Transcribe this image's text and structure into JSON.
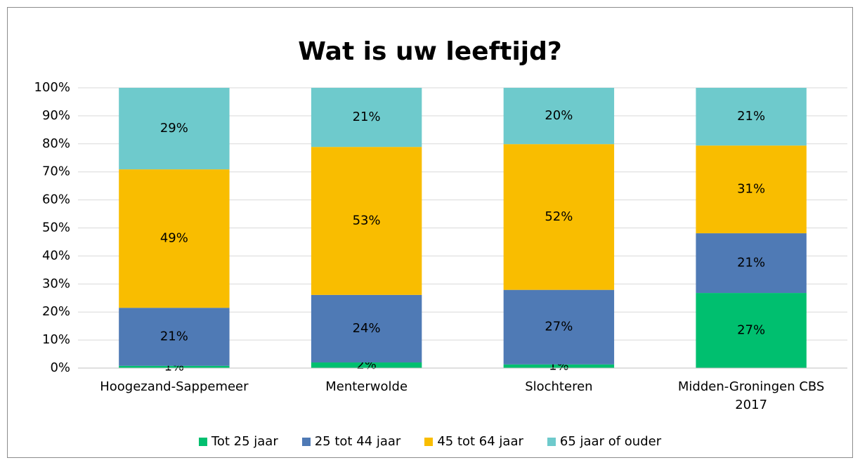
{
  "chart_data": {
    "type": "stacked_bar",
    "title": "Wat is uw leeftijd?",
    "categories": [
      "Hoogezand-Sappemeer",
      "Menterwolde",
      "Slochteren",
      "Midden-Groningen CBS 2017"
    ],
    "series": [
      {
        "name": "Tot 25 jaar",
        "color": "#00bf6f",
        "values": [
          0.8,
          2.0,
          1.3,
          26.8
        ],
        "value_labels": [
          "1%",
          "2%",
          "1%",
          "27%"
        ]
      },
      {
        "name": "25 tot 44 jaar",
        "color": "#4f7ab5",
        "values": [
          20.7,
          24.1,
          26.6,
          21.3
        ],
        "value_labels": [
          "21%",
          "24%",
          "27%",
          "21%"
        ]
      },
      {
        "name": "45 tot 64 jaar",
        "color": "#f9bd00",
        "values": [
          49.4,
          52.8,
          52.0,
          31.3
        ],
        "value_labels": [
          "49%",
          "53%",
          "52%",
          "31%"
        ]
      },
      {
        "name": "65 jaar of ouder",
        "color": "#6ecacc",
        "values": [
          29.1,
          21.1,
          20.1,
          20.6
        ],
        "value_labels": [
          "29%",
          "21%",
          "20%",
          "21%"
        ]
      }
    ],
    "ylim": [
      0,
      100
    ],
    "yticks": [
      {
        "value": 0,
        "label": "0%"
      },
      {
        "value": 10,
        "label": "10%"
      },
      {
        "value": 20,
        "label": "20%"
      },
      {
        "value": 30,
        "label": "30%"
      },
      {
        "value": 40,
        "label": "40%"
      },
      {
        "value": 50,
        "label": "50%"
      },
      {
        "value": 60,
        "label": "60%"
      },
      {
        "value": 70,
        "label": "70%"
      },
      {
        "value": 80,
        "label": "80%"
      },
      {
        "value": 90,
        "label": "90%"
      },
      {
        "value": 100,
        "label": "100%"
      }
    ],
    "grid": true,
    "legend": "bottom"
  }
}
